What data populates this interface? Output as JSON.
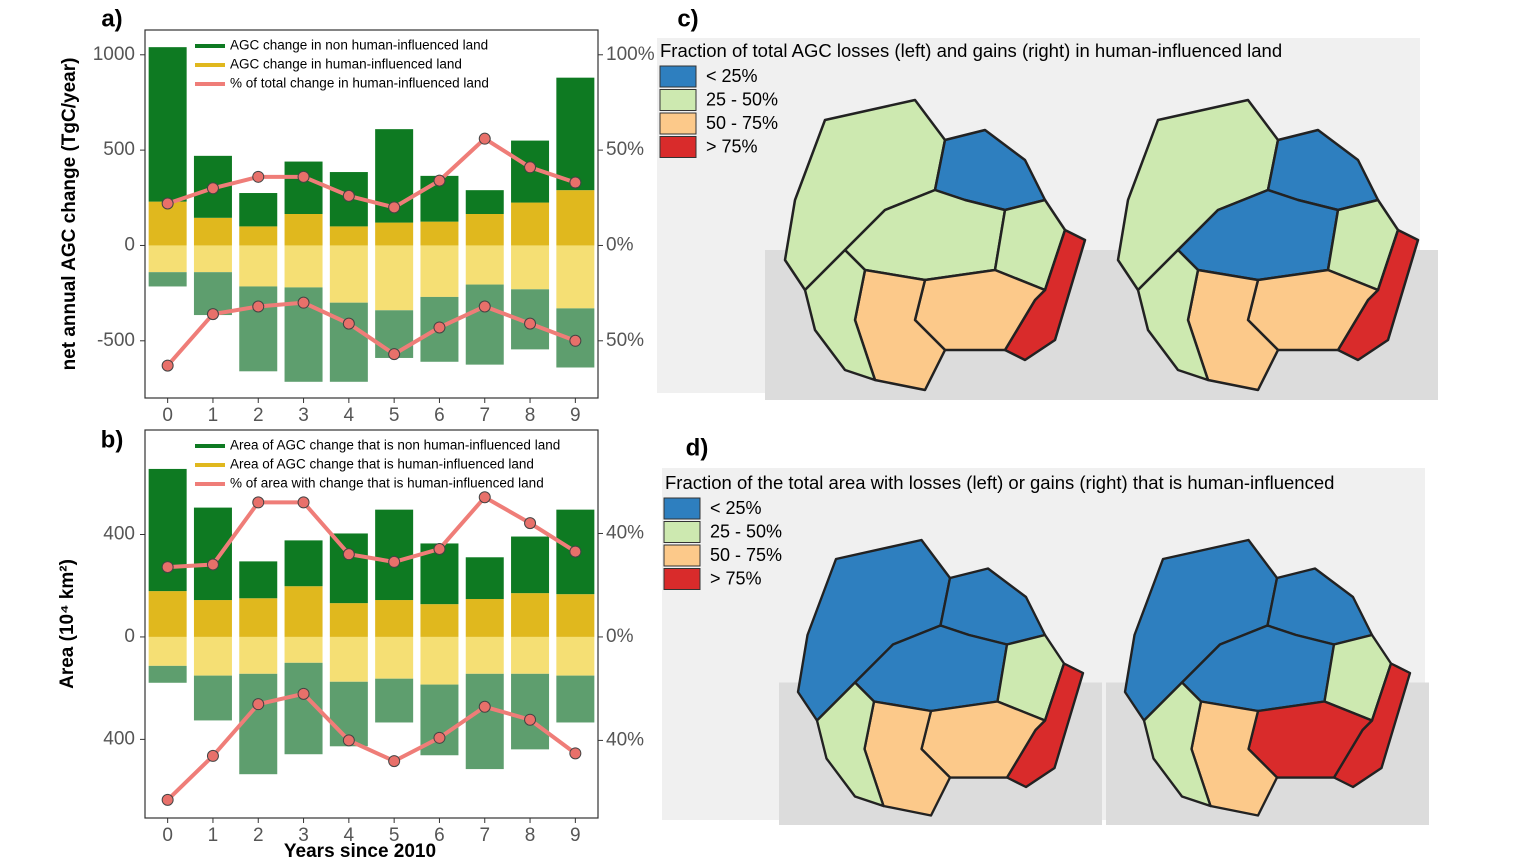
{
  "chart_data": [
    {
      "type": "bar",
      "panel": "a)",
      "ylabel": "net annual AGC change (TgC/year)",
      "categories": [
        "0",
        "1",
        "2",
        "3",
        "4",
        "5",
        "6",
        "7",
        "8",
        "9"
      ],
      "ylim": [
        -800,
        1130
      ],
      "yticks": [
        1000,
        500,
        0,
        -500
      ],
      "y2lim": [
        -80,
        113
      ],
      "y2ticks": [
        {
          "value": 100,
          "label": "100%"
        },
        {
          "value": 50,
          "label": "50%"
        },
        {
          "value": 0,
          "label": "0%"
        },
        {
          "value": -50,
          "label": "50%"
        }
      ],
      "series": [
        {
          "name": "AGC change in non human-influenced land",
          "color": "#0e7a22",
          "loss_color": "#5e9e6e",
          "values": [
            810,
            325,
            175,
            275,
            285,
            490,
            240,
            125,
            325,
            590
          ],
          "losses": [
            -75,
            -225,
            -445,
            -495,
            -415,
            -250,
            -340,
            -420,
            -315,
            -310
          ]
        },
        {
          "name": "AGC change in human-influenced land",
          "color": "#e0b81e",
          "loss_color": "#f5df74",
          "values": [
            230,
            145,
            100,
            165,
            100,
            120,
            125,
            165,
            225,
            290
          ],
          "losses": [
            -140,
            -140,
            -215,
            -220,
            -300,
            -340,
            -270,
            -205,
            -230,
            -330
          ]
        },
        {
          "name": "% of total change in human-influenced land",
          "color": "#ef7d78",
          "axis": "y2",
          "line": true,
          "values": [
            22,
            30,
            36,
            36,
            26,
            20,
            34,
            56,
            41,
            33
          ],
          "losses": [
            -63,
            -36,
            -32,
            -30,
            -41,
            -57,
            -43,
            -32,
            -41,
            -50
          ]
        }
      ]
    },
    {
      "type": "bar",
      "panel": "b)",
      "ylabel": "Area (10⁴ km²)",
      "xlabel": "Years since 2010",
      "categories": [
        "0",
        "1",
        "2",
        "3",
        "4",
        "5",
        "6",
        "7",
        "8",
        "9"
      ],
      "ylim": [
        -707,
        808
      ],
      "yticks": [
        400,
        0,
        {
          "value": -400,
          "label": "400"
        }
      ],
      "y2lim": [
        -70,
        80
      ],
      "y2ticks": [
        {
          "value": 40,
          "label": "40%"
        },
        {
          "value": 0,
          "label": "0%"
        },
        {
          "value": -40,
          "label": "40%"
        }
      ],
      "series": [
        {
          "name": "Area of AGC change that is non human-influenced land",
          "color": "#0e7a22",
          "loss_color": "#5e9e6e",
          "values": [
            477,
            361,
            144,
            179,
            272,
            353,
            237,
            163,
            221,
            330
          ],
          "losses": [
            -66,
            -175,
            -392,
            -357,
            -252,
            -171,
            -276,
            -372,
            -295,
            -183
          ]
        },
        {
          "name": "Area of AGC change that is human-influenced land",
          "color": "#e0b81e",
          "loss_color": "#f5df74",
          "values": [
            179,
            144,
            151,
            198,
            132,
            144,
            128,
            148,
            171,
            167
          ],
          "losses": [
            -113,
            -151,
            -144,
            -101,
            -175,
            -163,
            -186,
            -144,
            -144,
            -151
          ]
        },
        {
          "name": "% of area with change that is human-influenced land",
          "color": "#ef7d78",
          "axis": "y2",
          "line": true,
          "values": [
            27,
            28,
            52,
            52,
            32,
            29,
            34,
            54,
            44,
            33
          ],
          "losses": [
            -63,
            -46,
            -26,
            -22,
            -40,
            -48,
            -39,
            -27,
            -32,
            -45
          ]
        }
      ]
    }
  ],
  "maps": [
    {
      "panel": "c)",
      "title": "Fraction of total AGC losses (left) and gains (right) in human-influenced land",
      "legend": [
        {
          "label": "< 25%",
          "color": "#2e7fbf"
        },
        {
          "label": "25 - 50%",
          "color": "#cde9b0"
        },
        {
          "label": "50 - 75%",
          "color": "#fcc98a"
        },
        {
          "label": "> 75%",
          "color": "#d92b2b"
        }
      ]
    },
    {
      "panel": "d)",
      "title": "Fraction of the total area with losses (left) or gains (right) that is human-influenced",
      "legend": [
        {
          "label": "< 25%",
          "color": "#2e7fbf"
        },
        {
          "label": "25 - 50%",
          "color": "#cde9b0"
        },
        {
          "label": "50 - 75%",
          "color": "#fcc98a"
        },
        {
          "label": "> 75%",
          "color": "#d92b2b"
        }
      ]
    }
  ]
}
